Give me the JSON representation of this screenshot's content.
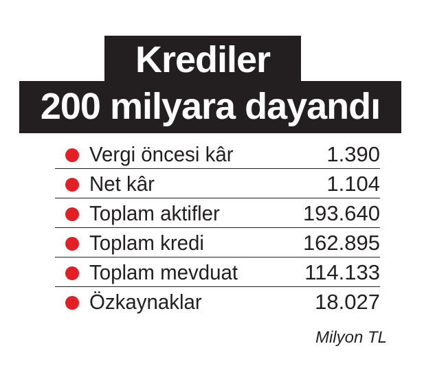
{
  "title_line1": "Krediler",
  "title_line2": "200 milyara dayandı",
  "unit": "Milyon TL",
  "colors": {
    "bullet": "#e31e24",
    "title_bg": "#231f20"
  },
  "chart_data": {
    "type": "table",
    "rows": [
      {
        "label": "Vergi öncesi kâr",
        "value": "1.390"
      },
      {
        "label": "Net kâr",
        "value": "1.104"
      },
      {
        "label": "Toplam aktifler",
        "value": "193.640"
      },
      {
        "label": "Toplam kredi",
        "value": "162.895"
      },
      {
        "label": "Toplam mevduat",
        "value": "114.133"
      },
      {
        "label": "Özkaynaklar",
        "value": "18.027"
      }
    ]
  }
}
